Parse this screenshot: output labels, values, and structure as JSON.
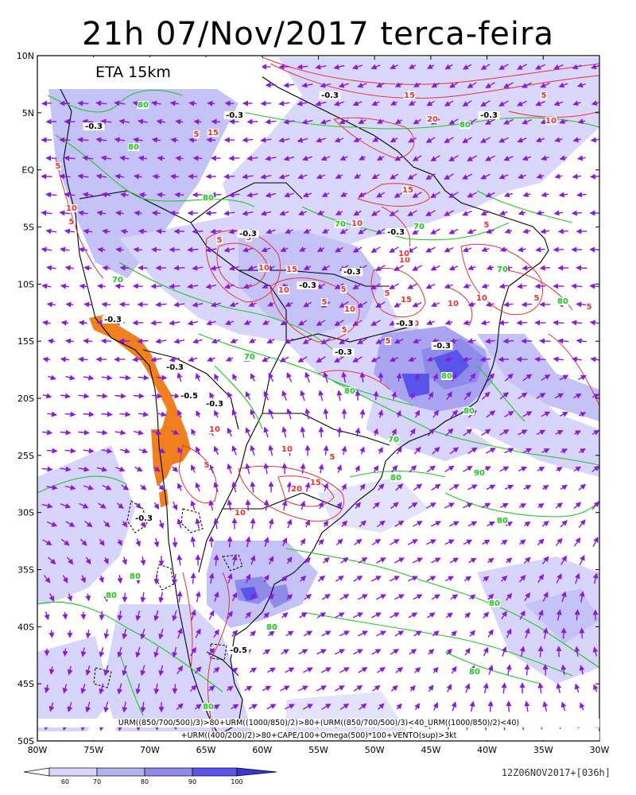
{
  "title": "21h 07/Nov/2017 terca-feira",
  "model_label": "ETA 15km",
  "formula_line1": "URM((850/700/500)/3)>80+URM((1000/850)/2)>80+(URM((850/700/500)/3)<40_URM((1000/850)/2)<40)",
  "formula_line2": "+URM((400/200)/2)>80+CAPE/100+Omega(500)*100+VENTO(sup)>3kt",
  "run_label": "12Z06NOV2017+[036h]",
  "axes": {
    "lat_labels": [
      "10N",
      "5N",
      "EQ",
      "5S",
      "10S",
      "15S",
      "20S",
      "25S",
      "30S",
      "35S",
      "40S",
      "45S",
      "50S"
    ],
    "lon_labels": [
      "80W",
      "75W",
      "70W",
      "65W",
      "60W",
      "55W",
      "50W",
      "45W",
      "40W",
      "35W",
      "30W"
    ]
  },
  "legend": {
    "labels": [
      "60",
      "70",
      "80",
      "90",
      "100"
    ],
    "colors": [
      "#ffffff",
      "#d7d5fb",
      "#b4b1f3",
      "#8f8be8",
      "#5a55ea",
      "#3a35d6"
    ]
  },
  "contour_labels": {
    "green": [
      "80",
      "80",
      "80",
      "80",
      "70",
      "70",
      "70",
      "70",
      "80",
      "70",
      "80",
      "80",
      "80",
      "70",
      "80",
      "90",
      "80",
      "80",
      "80",
      "80",
      "80",
      "80",
      "80"
    ],
    "red": [
      "5",
      "10",
      "5",
      "5",
      "15",
      "5",
      "10",
      "5",
      "5",
      "10",
      "15",
      "10",
      "5",
      "10",
      "5",
      "15",
      "10",
      "10",
      "5",
      "10",
      "5",
      "5",
      "15",
      "20",
      "10",
      "5",
      "10",
      "5",
      "10",
      "20",
      "15",
      "5",
      "10",
      "15",
      "10",
      "5",
      "10",
      "5"
    ],
    "black": [
      "-0.3",
      "-0.3",
      "-0.3",
      "-0.3",
      "-0.3",
      "-0.3",
      "-0.3",
      "-0.3",
      "-0.3",
      "-0.3",
      "-0.3",
      "-0.5",
      "-0.3",
      "-0.3",
      "-0.3",
      "-0.3",
      "-0.5"
    ]
  },
  "colors": {
    "humidity_contour": "#1ec81e",
    "cape_contour": "#ee3030",
    "omega_contour": "#000000",
    "wind_vectors": "#8a1ae0",
    "high_terrain": "#f07f1e",
    "coastline": "#000000"
  }
}
